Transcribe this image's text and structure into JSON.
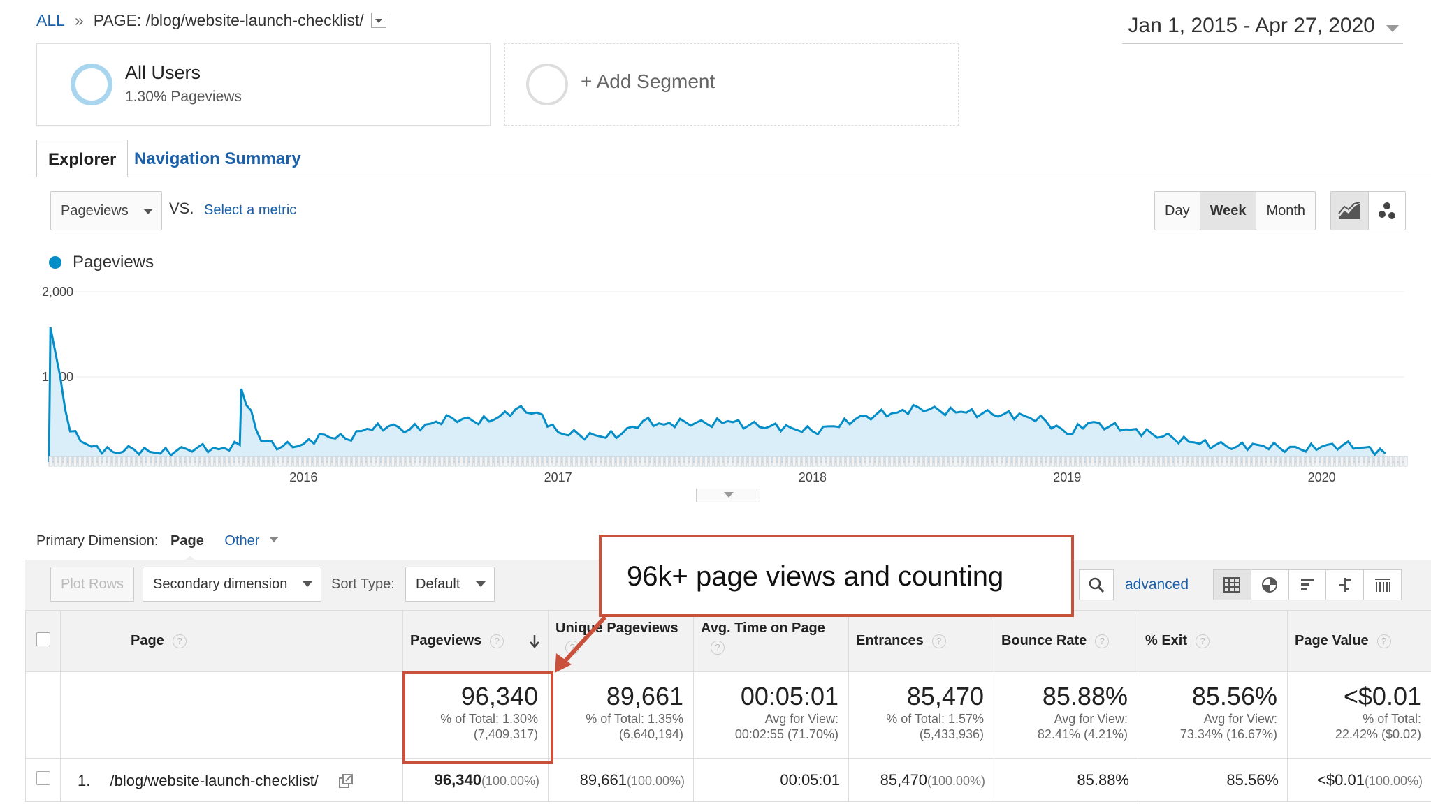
{
  "breadcrumb": {
    "all": "ALL",
    "sep": "»",
    "page": "PAGE: /blog/website-launch-checklist/"
  },
  "date_range": "Jan 1, 2015 - Apr 27, 2020",
  "segments": {
    "segment1_title": "All Users",
    "segment1_sub": "1.30% Pageviews",
    "add_segment": "+ Add Segment"
  },
  "tabs": {
    "explorer": "Explorer",
    "navigation_summary": "Navigation Summary"
  },
  "metric_controls": {
    "metric": "Pageviews",
    "vs": "VS.",
    "select_metric": "Select a metric"
  },
  "time_buttons": {
    "day": "Day",
    "week": "Week",
    "month": "Month",
    "active": "Week"
  },
  "chart_legend": "Pageviews",
  "chart_data": {
    "type": "area",
    "series": [
      {
        "name": "Pageviews"
      }
    ],
    "y_ticks": [
      "2,000",
      "1,000"
    ],
    "x_ticks": [
      "2016",
      "2017",
      "2018",
      "2019",
      "2020"
    ],
    "ylim": [
      0,
      2000
    ],
    "grid": true,
    "color": "#058dc7",
    "points": [
      [
        "2015-01",
        0
      ],
      [
        "2015-01",
        1580
      ],
      [
        "2015-02",
        360
      ],
      [
        "2015-03",
        180
      ],
      [
        "2015-04",
        120
      ],
      [
        "2015-05",
        150
      ],
      [
        "2015-06",
        110
      ],
      [
        "2015-07",
        130
      ],
      [
        "2015-08",
        170
      ],
      [
        "2015-09",
        150
      ],
      [
        "2015-10",
        200
      ],
      [
        "2015-10",
        860
      ],
      [
        "2015-11",
        250
      ],
      [
        "2015-12",
        180
      ],
      [
        "2016-01",
        210
      ],
      [
        "2016-02",
        320
      ],
      [
        "2016-03",
        270
      ],
      [
        "2016-04",
        390
      ],
      [
        "2016-05",
        420
      ],
      [
        "2016-06",
        380
      ],
      [
        "2016-07",
        450
      ],
      [
        "2016-08",
        520
      ],
      [
        "2016-09",
        480
      ],
      [
        "2016-10",
        500
      ],
      [
        "2016-11",
        620
      ],
      [
        "2016-12",
        580
      ],
      [
        "2017-01",
        350
      ],
      [
        "2017-02",
        320
      ],
      [
        "2017-03",
        300
      ],
      [
        "2017-04",
        330
      ],
      [
        "2017-05",
        480
      ],
      [
        "2017-06",
        440
      ],
      [
        "2017-07",
        470
      ],
      [
        "2017-08",
        450
      ],
      [
        "2017-09",
        480
      ],
      [
        "2017-10",
        430
      ],
      [
        "2017-11",
        420
      ],
      [
        "2017-12",
        400
      ],
      [
        "2018-01",
        360
      ],
      [
        "2018-02",
        420
      ],
      [
        "2018-03",
        500
      ],
      [
        "2018-04",
        560
      ],
      [
        "2018-05",
        580
      ],
      [
        "2018-06",
        640
      ],
      [
        "2018-07",
        600
      ],
      [
        "2018-08",
        590
      ],
      [
        "2018-09",
        570
      ],
      [
        "2018-10",
        560
      ],
      [
        "2018-11",
        540
      ],
      [
        "2018-12",
        480
      ],
      [
        "2019-01",
        330
      ],
      [
        "2019-02",
        460
      ],
      [
        "2019-03",
        420
      ],
      [
        "2019-04",
        380
      ],
      [
        "2019-05",
        330
      ],
      [
        "2019-06",
        280
      ],
      [
        "2019-07",
        230
      ],
      [
        "2019-08",
        200
      ],
      [
        "2019-09",
        180
      ],
      [
        "2019-10",
        200
      ],
      [
        "2019-11",
        170
      ],
      [
        "2019-12",
        150
      ],
      [
        "2020-01",
        180
      ],
      [
        "2020-02",
        200
      ],
      [
        "2020-03",
        170
      ],
      [
        "2020-04",
        100
      ]
    ]
  },
  "primary_dimension": {
    "label": "Primary Dimension:",
    "page": "Page",
    "other": "Other"
  },
  "toolbar": {
    "plot_rows": "Plot Rows",
    "secondary_dimension": "Secondary dimension",
    "sort_type_label": "Sort Type:",
    "sort_type_value": "Default",
    "advanced": "advanced"
  },
  "table": {
    "headers": [
      "Page",
      "Pageviews",
      "Unique Pageviews",
      "Avg. Time on Page",
      "Entrances",
      "Bounce Rate",
      "% Exit",
      "Page Value"
    ],
    "totals": [
      {
        "value": "96,340",
        "sub1": "% of Total: 1.30%",
        "sub2": "(7,409,317)"
      },
      {
        "value": "89,661",
        "sub1": "% of Total: 1.35%",
        "sub2": "(6,640,194)"
      },
      {
        "value": "00:05:01",
        "sub1": "Avg for View:",
        "sub2": "00:02:55 (71.70%)"
      },
      {
        "value": "85,470",
        "sub1": "% of Total: 1.57%",
        "sub2": "(5,433,936)"
      },
      {
        "value": "85.88%",
        "sub1": "Avg for View:",
        "sub2": "82.41% (4.21%)"
      },
      {
        "value": "85.56%",
        "sub1": "Avg for View:",
        "sub2": "73.34% (16.67%)"
      },
      {
        "value": "<$0.01",
        "sub1": "% of Total:",
        "sub2": "22.42% ($0.02)"
      }
    ],
    "rows": [
      {
        "index": "1.",
        "page": "/blog/website-launch-checklist/",
        "pageviews": "96,340",
        "pageviews_pct": "(100.00%)",
        "unique": "89,661",
        "unique_pct": "(100.00%)",
        "avg_time": "00:05:01",
        "entrances": "85,470",
        "entrances_pct": "(100.00%)",
        "bounce": "85.88%",
        "exit": "85.56%",
        "value": "<$0.01",
        "value_pct": "(100.00%)"
      }
    ]
  },
  "annotation": "96k+ page views and counting",
  "colors": {
    "accent": "#c9503a",
    "link": "#1a5fa8",
    "chart": "#058dc7"
  }
}
